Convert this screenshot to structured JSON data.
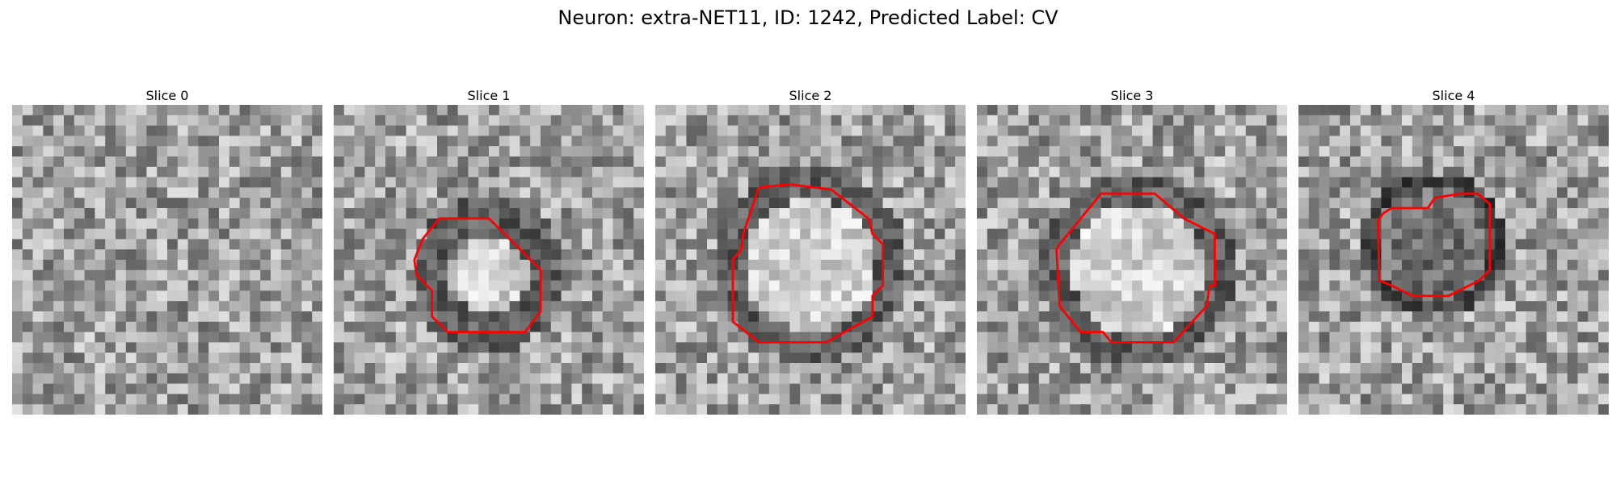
{
  "figure": {
    "title": "Neuron: extra-NET11, ID: 1242, Predicted Label: CV"
  },
  "panels": [
    {
      "title": "Slice 0",
      "has_contour": false
    },
    {
      "title": "Slice 1",
      "has_contour": true
    },
    {
      "title": "Slice 2",
      "has_contour": true
    },
    {
      "title": "Slice 3",
      "has_contour": true
    },
    {
      "title": "Slice 4",
      "has_contour": true
    }
  ],
  "colors": {
    "contour": "#ff0000",
    "background": "#ffffff"
  }
}
